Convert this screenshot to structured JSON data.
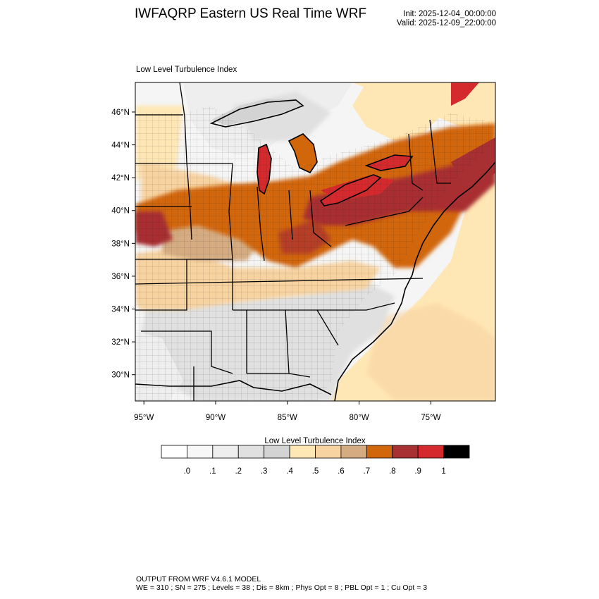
{
  "header": {
    "title": "IWFAQRP Eastern US Real Time WRF",
    "init": "Init: 2025-12-04_00:00:00",
    "valid": "Valid: 2025-12-09_22:00:00"
  },
  "panel": {
    "title": "Low Level Turbulence Index"
  },
  "axes": {
    "lat_labels": [
      "46°N",
      "44°N",
      "42°N",
      "40°N",
      "38°N",
      "36°N",
      "34°N",
      "32°N",
      "30°N"
    ],
    "lon_labels": [
      "95°W",
      "90°W",
      "85°W",
      "80°W",
      "75°W"
    ],
    "lat_range": [
      28.4,
      47.8
    ],
    "lon_range": [
      -95.6,
      -70.5
    ]
  },
  "colorbar": {
    "title": "Low Level Turbulence Index",
    "tick_labels": [
      ".0",
      ".1",
      ".2",
      ".3",
      ".4",
      ".5",
      ".6",
      ".7",
      ".8",
      ".9",
      "1"
    ],
    "colors": [
      "#ffffff",
      "#f7f7f7",
      "#eeeeee",
      "#e0e0e0",
      "#d3d3d3",
      "#ffe7b5",
      "#f7d3a1",
      "#d5ac82",
      "#d2660a",
      "#a82f32",
      "#d42a2e",
      "#000000"
    ]
  },
  "footer": {
    "line1": "OUTPUT FROM WRF V4.6.1 MODEL",
    "line2": "WE = 310 ; SN = 275 ; Levels = 38 ; Dis = 8km ; Phys Opt = 8 ; PBL Opt = 1 ; Cu Opt = 3"
  }
}
